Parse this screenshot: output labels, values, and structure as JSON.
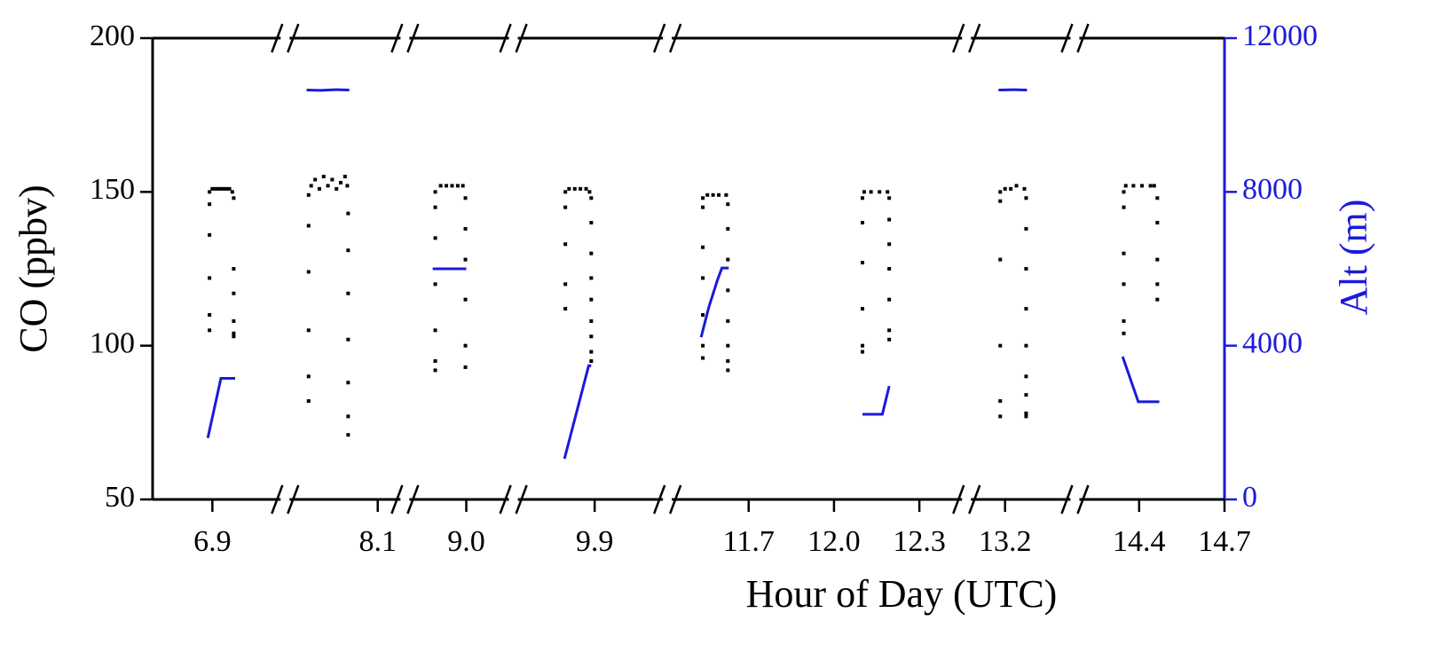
{
  "chart_data": {
    "type": "scatter",
    "x_label": "Hour of Day (UTC)",
    "y_label": "CO (ppbv)",
    "y2_label": "Alt (m)",
    "ylim": [
      50,
      200
    ],
    "yticks": [
      50,
      100,
      150,
      200
    ],
    "y2lim": [
      0,
      12000
    ],
    "y2ticks": [
      0,
      4000,
      8000,
      12000
    ],
    "y2_color": "#1a1adb",
    "panels": [
      {
        "xlim": [
          6.69,
          7.14
        ],
        "xticks": [
          6.9
        ],
        "series": [
          {
            "type": "scatter",
            "color": "#000000",
            "x": [
              6.89,
              6.89,
              6.89,
              6.89,
              6.89,
              6.89,
              6.9,
              6.91,
              6.92,
              6.93,
              6.94,
              6.95,
              6.96,
              6.97,
              6.975,
              6.975,
              6.975,
              6.975,
              6.975,
              6.975
            ],
            "values": [
              105,
              110,
              122,
              136,
              146,
              150,
              151,
              151,
              151,
              151,
              151,
              151,
              151,
              150,
              148,
              125,
              117,
              108,
              104,
              103
            ]
          },
          {
            "type": "line",
            "axis": "y2",
            "color": "#1a1adb",
            "x": [
              6.884,
              6.93,
              6.98
            ],
            "values": [
              1600,
              3150,
              3150
            ]
          }
        ]
      },
      {
        "xlim": [
          7.79,
          8.18
        ],
        "xticks": [
          8.1
        ],
        "series": [
          {
            "type": "scatter",
            "color": "#000000",
            "x": [
              7.857,
              7.857,
              7.857,
              7.857,
              7.857,
              7.857,
              7.866,
              7.88,
              7.895,
              7.91,
              7.925,
              7.94,
              7.955,
              7.97,
              7.985,
              7.993,
              7.996,
              7.996,
              7.996,
              7.996,
              7.996,
              7.996,
              7.996
            ],
            "values": [
              82,
              90,
              105,
              124,
              139,
              149,
              152,
              154,
              151,
              155,
              152,
              154,
              151,
              153,
              155,
              152,
              143,
              131,
              117,
              102,
              88,
              77,
              71
            ]
          },
          {
            "type": "line",
            "axis": "y2",
            "color": "#1a1adb",
            "x": [
              7.85,
              7.9,
              7.95,
              8.0
            ],
            "values": [
              10650,
              10640,
              10660,
              10650
            ]
          }
        ]
      },
      {
        "xlim": [
          8.8,
          9.15
        ],
        "xticks": [
          {
            "value": 9,
            "label": "9.0"
          }
        ],
        "series": [
          {
            "type": "scatter",
            "color": "#000000",
            "x": [
              8.891,
              8.891,
              8.891,
              8.891,
              8.891,
              8.891,
              8.891,
              8.91,
              8.93,
              8.95,
              8.97,
              8.988,
              8.997,
              8.997,
              8.997,
              8.997,
              8.997,
              8.997
            ],
            "values": [
              92,
              95,
              105,
              120,
              135,
              145,
              150,
              152,
              152,
              152,
              152,
              152,
              148,
              138,
              128,
              115,
              100,
              93
            ]
          },
          {
            "type": "line",
            "axis": "y2",
            "color": "#1a1adb",
            "x": [
              8.882,
              8.94,
              9.0
            ],
            "values": [
              6000,
              6000,
              6000
            ]
          }
        ]
      },
      {
        "xlim": [
          9.63,
          10.14
        ],
        "xticks": [
          9.9
        ],
        "series": [
          {
            "type": "scatter",
            "color": "#000000",
            "x": [
              9.797,
              9.797,
              9.797,
              9.797,
              9.797,
              9.81,
              9.83,
              9.85,
              9.87,
              9.882,
              9.888,
              9.888,
              9.888,
              9.888,
              9.888,
              9.888,
              9.888,
              9.888,
              9.888
            ],
            "values": [
              112,
              120,
              133,
              145,
              150,
              151,
              151,
              151,
              151,
              150,
              148,
              140,
              130,
              122,
              115,
              108,
              103,
              98,
              95
            ]
          },
          {
            "type": "line",
            "axis": "y2",
            "color": "#1a1adb",
            "x": [
              9.794,
              9.879,
              9.888
            ],
            "values": [
              1060,
              3480,
              3480
            ]
          }
        ]
      },
      {
        "xlim": [
          11.43,
          12.45
        ],
        "xticks": [
          11.7,
          {
            "value": 12,
            "label": "12.0"
          },
          12.3
        ],
        "series": [
          {
            "type": "scatter",
            "color": "#000000",
            "x": [
              11.539,
              11.539,
              11.539,
              11.539,
              11.539,
              11.539,
              11.539,
              11.555,
              11.575,
              11.595,
              11.621,
              11.627,
              11.627,
              11.627,
              11.627,
              11.627,
              11.627,
              11.627,
              11.627
            ],
            "values": [
              96,
              100,
              110,
              122,
              132,
              145,
              148,
              149,
              149,
              149,
              149,
              146,
              138,
              128,
              118,
              108,
              100,
              95,
              92
            ]
          },
          {
            "type": "line",
            "axis": "y2",
            "color": "#1a1adb",
            "x": [
              11.533,
              11.56,
              11.59,
              11.606,
              11.63
            ],
            "values": [
              4220,
              5000,
              5700,
              6020,
              6020
            ]
          },
          {
            "type": "scatter",
            "color": "#000000",
            "x": [
              12.1,
              12.1,
              12.1,
              12.1,
              12.1,
              12.1,
              12.106,
              12.13,
              12.16,
              12.188,
              12.194,
              12.194,
              12.194,
              12.194,
              12.194,
              12.194,
              12.194
            ],
            "values": [
              98,
              100,
              112,
              127,
              140,
              148,
              150,
              150,
              150,
              150,
              148,
              141,
              133,
              125,
              115,
              105,
              102
            ]
          },
          {
            "type": "line",
            "axis": "y2",
            "color": "#1a1adb",
            "x": [
              12.1,
              12.17,
              12.194
            ],
            "values": [
              2215,
              2215,
              2950
            ]
          }
        ]
      },
      {
        "xlim": [
          13.08,
          13.43
        ],
        "xticks": [
          13.2
        ],
        "series": [
          {
            "type": "scatter",
            "color": "#000000",
            "x": [
              13.183,
              13.183,
              13.183,
              13.183,
              13.183,
              13.183,
              13.2,
              13.22,
              13.24,
              13.268,
              13.274,
              13.274,
              13.274,
              13.274,
              13.274,
              13.274,
              13.274,
              13.274,
              13.274
            ],
            "values": [
              77,
              82,
              100,
              128,
              147,
              150,
              151,
              151,
              152,
              151,
              148,
              138,
              125,
              112,
              100,
              90,
              84,
              78,
              77
            ]
          },
          {
            "type": "line",
            "axis": "y2",
            "color": "#1a1adb",
            "x": [
              13.177,
              13.23,
              13.277
            ],
            "values": [
              10650,
              10660,
              10650
            ]
          }
        ]
      },
      {
        "xlim": [
          14.19,
          14.7
        ],
        "xticks": [
          14.4,
          14.7
        ],
        "series": [
          {
            "type": "scatter",
            "color": "#000000",
            "x": [
              14.346,
              14.346,
              14.346,
              14.346,
              14.346,
              14.346,
              14.353,
              14.38,
              14.41,
              14.44,
              14.453,
              14.464,
              14.464,
              14.464,
              14.464,
              14.464
            ],
            "values": [
              104,
              108,
              120,
              130,
              145,
              150,
              152,
              152,
              152,
              152,
              152,
              148,
              140,
              128,
              120,
              115
            ]
          },
          {
            "type": "line",
            "axis": "y2",
            "color": "#1a1adb",
            "x": [
              14.342,
              14.397,
              14.471
            ],
            "values": [
              3715,
              2540,
              2540
            ]
          }
        ]
      }
    ]
  }
}
